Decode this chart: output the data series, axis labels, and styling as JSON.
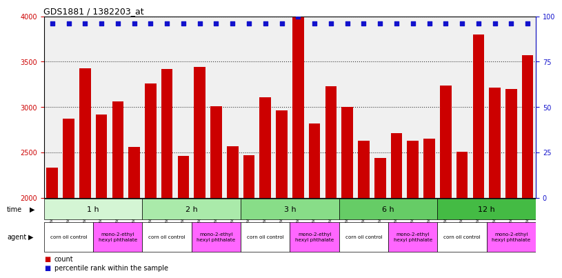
{
  "title": "GDS1881 / 1382203_at",
  "samples": [
    "GSM100955",
    "GSM100956",
    "GSM100957",
    "GSM100969",
    "GSM100970",
    "GSM100971",
    "GSM100958",
    "GSM100959",
    "GSM100972",
    "GSM100973",
    "GSM100974",
    "GSM100975",
    "GSM100960",
    "GSM100961",
    "GSM100962",
    "GSM100976",
    "GSM100977",
    "GSM100978",
    "GSM100963",
    "GSM100964",
    "GSM100965",
    "GSM100979",
    "GSM100980",
    "GSM100981",
    "GSM100951",
    "GSM100952",
    "GSM100953",
    "GSM100966",
    "GSM100967",
    "GSM100968"
  ],
  "counts": [
    2330,
    2870,
    3430,
    2920,
    3060,
    2560,
    3260,
    3420,
    2460,
    3440,
    3010,
    2570,
    2470,
    3110,
    2960,
    3990,
    2820,
    3230,
    3000,
    2630,
    2440,
    2710,
    2630,
    2650,
    3240,
    2510,
    3800,
    3210,
    3200,
    3570
  ],
  "percentiles": [
    96,
    96,
    96,
    96,
    96,
    96,
    96,
    96,
    96,
    96,
    96,
    96,
    96,
    96,
    96,
    100,
    96,
    96,
    96,
    96,
    96,
    96,
    96,
    96,
    96,
    96,
    96,
    96,
    96,
    96
  ],
  "time_groups": [
    {
      "label": "1 h",
      "start": 0,
      "end": 6,
      "color": "#d4f5d4"
    },
    {
      "label": "2 h",
      "start": 6,
      "end": 12,
      "color": "#aaeaaa"
    },
    {
      "label": "3 h",
      "start": 12,
      "end": 18,
      "color": "#88dd88"
    },
    {
      "label": "6 h",
      "start": 18,
      "end": 24,
      "color": "#66cc66"
    },
    {
      "label": "12 h",
      "start": 24,
      "end": 30,
      "color": "#44bb44"
    }
  ],
  "agent_groups": [
    {
      "label": "corn oil control",
      "start": 0,
      "end": 3,
      "color": "#ffffff"
    },
    {
      "label": "mono-2-ethyl\nhexyl phthalate",
      "start": 3,
      "end": 6,
      "color": "#ff66ff"
    },
    {
      "label": "corn oil control",
      "start": 6,
      "end": 9,
      "color": "#ffffff"
    },
    {
      "label": "mono-2-ethyl\nhexyl phthalate",
      "start": 9,
      "end": 12,
      "color": "#ff66ff"
    },
    {
      "label": "corn oil control",
      "start": 12,
      "end": 15,
      "color": "#ffffff"
    },
    {
      "label": "mono-2-ethyl\nhexyl phthalate",
      "start": 15,
      "end": 18,
      "color": "#ff66ff"
    },
    {
      "label": "corn oil control",
      "start": 18,
      "end": 21,
      "color": "#ffffff"
    },
    {
      "label": "mono-2-ethyl\nhexyl phthalate",
      "start": 21,
      "end": 24,
      "color": "#ff66ff"
    },
    {
      "label": "corn oil control",
      "start": 24,
      "end": 27,
      "color": "#ffffff"
    },
    {
      "label": "mono-2-ethyl\nhexyl phthalate",
      "start": 27,
      "end": 30,
      "color": "#ff66ff"
    }
  ],
  "ylim": [
    2000,
    4000
  ],
  "yticks": [
    2000,
    2500,
    3000,
    3500,
    4000
  ],
  "bar_color": "#cc0000",
  "dot_color": "#1111cc",
  "percentile_scale_max": 100,
  "bg_color": "#ffffff",
  "grid_color": "#333333",
  "plot_bg_color": "#f0f0f0"
}
